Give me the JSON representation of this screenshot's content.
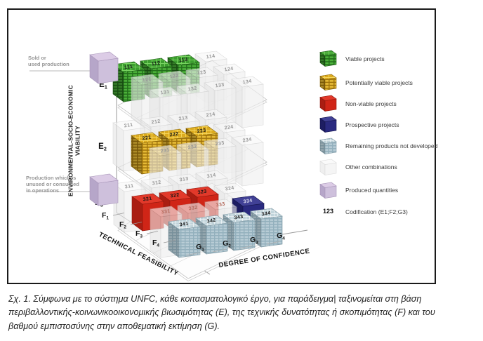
{
  "annotations": {
    "sold": [
      "Sold or",
      "used production"
    ],
    "production": [
      "Production which is",
      "unused or consumed",
      "in operations"
    ]
  },
  "axes": {
    "e_title_line1": "ENVIRONMENTAL-SOCIO-ECONOMIC",
    "e_title_line2": "VIABILITY",
    "e_labels": [
      {
        "base": "E",
        "sub": "1"
      },
      {
        "base": "E",
        "sub": "2"
      },
      {
        "base": "E",
        "sub": "3"
      }
    ],
    "f_title": "TECHNICAL FEASIBILITY",
    "f_labels": [
      {
        "base": "F",
        "sub": "1"
      },
      {
        "base": "F",
        "sub": "2"
      },
      {
        "base": "F",
        "sub": "3"
      },
      {
        "base": "F",
        "sub": "4"
      }
    ],
    "g_title": "DEGREE OF CONFIDENCE",
    "g_labels": [
      {
        "base": "G",
        "sub": "1"
      },
      {
        "base": "G",
        "sub": "2"
      },
      {
        "base": "G",
        "sub": "3"
      },
      {
        "base": "G",
        "sub": "4"
      }
    ]
  },
  "cubes": {
    "layers": [
      {
        "id": "E1",
        "rows": [
          [
            {
              "code": "111",
              "type": "green"
            },
            {
              "code": "112",
              "type": "green"
            },
            {
              "code": "113",
              "type": "green"
            },
            {
              "code": "114",
              "type": "white"
            }
          ],
          [
            {
              "code": "121",
              "type": "white"
            },
            {
              "code": "122",
              "type": "white"
            },
            {
              "code": "123",
              "type": "white"
            },
            {
              "code": "124",
              "type": "white"
            }
          ],
          [
            {
              "code": "131",
              "type": "white"
            },
            {
              "code": "132",
              "type": "white"
            },
            {
              "code": "133",
              "type": "white"
            },
            {
              "code": "134",
              "type": "white"
            }
          ]
        ]
      },
      {
        "id": "E2",
        "rows": [
          [
            {
              "code": "211",
              "type": "white"
            },
            {
              "code": "212",
              "type": "white"
            },
            {
              "code": "213",
              "type": "white"
            },
            {
              "code": "214",
              "type": "white"
            }
          ],
          [
            {
              "code": "221",
              "type": "yellow"
            },
            {
              "code": "222",
              "type": "yellow"
            },
            {
              "code": "223",
              "type": "yellow"
            },
            {
              "code": "224",
              "type": "white"
            }
          ],
          [
            {
              "code": "231",
              "type": "white"
            },
            {
              "code": "232",
              "type": "white"
            },
            {
              "code": "233",
              "type": "white"
            },
            {
              "code": "234",
              "type": "white"
            }
          ]
        ]
      },
      {
        "id": "E3",
        "rows": [
          [
            {
              "code": "311",
              "type": "white"
            },
            {
              "code": "312",
              "type": "white"
            },
            {
              "code": "313",
              "type": "white"
            },
            {
              "code": "314",
              "type": "white"
            }
          ],
          [
            {
              "code": "321",
              "type": "red"
            },
            {
              "code": "322",
              "type": "red"
            },
            {
              "code": "323",
              "type": "red"
            },
            {
              "code": "324",
              "type": "white"
            }
          ],
          [
            {
              "code": "331",
              "type": "white"
            },
            {
              "code": "332",
              "type": "white"
            },
            {
              "code": "333",
              "type": "white"
            },
            {
              "code": "334",
              "type": "navy"
            }
          ],
          [
            {
              "code": "341",
              "type": "lightblue"
            },
            {
              "code": "342",
              "type": "lightblue"
            },
            {
              "code": "343",
              "type": "lightblue"
            },
            {
              "code": "344",
              "type": "lightblue"
            }
          ]
        ]
      }
    ]
  },
  "legend": {
    "items": [
      {
        "icon": "green",
        "label": "Viable projects"
      },
      {
        "icon": "yellow",
        "label": "Potentially viable projects"
      },
      {
        "icon": "red",
        "label": "Non-viable projects"
      },
      {
        "icon": "navy",
        "label": "Prospective projects"
      },
      {
        "icon": "lightblue",
        "label": "Remaining products not developed"
      },
      {
        "icon": "white",
        "label": "Other combinations"
      },
      {
        "icon": "purple",
        "label": "Produced quantities"
      }
    ],
    "codification": {
      "sample": "123",
      "label": "Codification (E1;F2;G3)"
    }
  },
  "colors": {
    "green": "#3f9e2f",
    "yellow": "#dcab1f",
    "red": "#d02517",
    "navy": "#2a2a80",
    "lightblue": "#a3bcc7",
    "white": "#f2f2f2",
    "purple": "#cec0dc"
  },
  "caption": {
    "lines": [
      "Σχ. 1. Σύμφωνα με το σύστημα UNFC, κάθε κοιτασματολογικό έργο, για παράδειγμα| ταξινομείται στη βάση",
      "περιβαλλοντικής-κοινωνικοοικονομικής βιωσιμότητας (Ε), της τεχνικής δυνατότητας ή σκοπιμότητας (F) και του",
      "βαθμού εμπιστοσύνης στην αποθεματική εκτίμηση (G)."
    ]
  }
}
